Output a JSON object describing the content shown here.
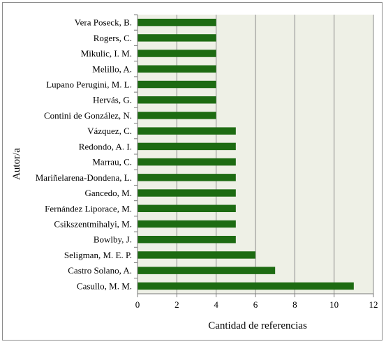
{
  "chart_data": {
    "type": "bar",
    "orientation": "horizontal",
    "xlabel": "Cantidad de referencias",
    "ylabel": "Autor/a",
    "xlim": [
      0,
      12
    ],
    "xticks": [
      "0",
      "2",
      "4",
      "6",
      "8",
      "10",
      "12"
    ],
    "grid": true,
    "legend": "none",
    "colors": {
      "bar": "#1d6b12",
      "plot_background": "#eef0e6",
      "gridline": "#8a8a8a"
    },
    "categories": [
      "Vera Poseck, B.",
      "Rogers, C.",
      "Mikulic, I. M.",
      "Melillo, A.",
      "Lupano Perugini, M. L.",
      "Hervás, G.",
      "Contini de González, N.",
      "Vázquez, C.",
      "Redondo, A. I.",
      "Marrau, C.",
      "Mariñelarena-Dondena, L.",
      "Gancedo, M.",
      "Fernández Liporace, M.",
      "Csikszentmihalyi, M.",
      "Bowlby, J.",
      "Seligman, M. E. P.",
      "Castro Solano, A.",
      "Casullo, M. M."
    ],
    "values": [
      4,
      4,
      4,
      4,
      4,
      4,
      4,
      5,
      5,
      5,
      5,
      5,
      5,
      5,
      5,
      6,
      7,
      11
    ]
  }
}
